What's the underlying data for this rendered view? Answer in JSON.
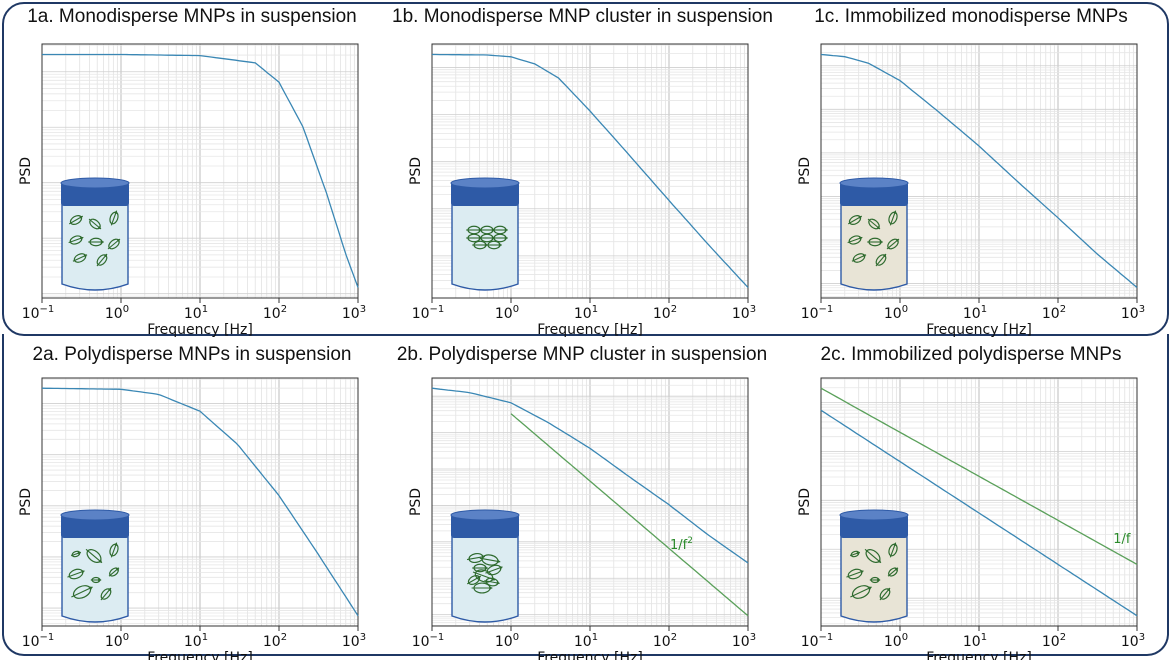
{
  "chart_data": [
    {
      "panel": "1a",
      "type": "line",
      "title": "1a. Monodisperse MNPs in suspension",
      "xlabel": "Frequency [Hz]",
      "ylabel": "PSD",
      "xscale": "log",
      "yscale": "log",
      "xlim": [
        0.1,
        1000
      ],
      "xticks": [
        0.1,
        1,
        10,
        100,
        1000
      ],
      "xtick_labels": [
        {
          "base": "10",
          "exp": "−1"
        },
        {
          "base": "10",
          "exp": "0"
        },
        {
          "base": "10",
          "exp": "1"
        },
        {
          "base": "10",
          "exp": "2"
        },
        {
          "base": "10",
          "exp": "3"
        }
      ],
      "grid": true,
      "series": [
        {
          "color": "#3a87b4",
          "x": [
            0.1,
            1,
            10,
            50,
            100,
            200,
            400,
            700,
            1000
          ],
          "y_rel": [
            0.0,
            0.0,
            -0.02,
            -0.15,
            -0.5,
            -1.3,
            -2.5,
            -3.6,
            -4.2
          ]
        }
      ],
      "illustration": "vial-monodisperse"
    },
    {
      "panel": "1b",
      "type": "line",
      "title": "1b. Monodisperse MNP cluster in suspension",
      "xlabel": "Frequency [Hz]",
      "ylabel": "PSD",
      "xscale": "log",
      "yscale": "log",
      "xlim": [
        0.1,
        1000
      ],
      "xticks": [
        0.1,
        1,
        10,
        100,
        1000
      ],
      "xtick_labels": [
        {
          "base": "10",
          "exp": "−1"
        },
        {
          "base": "10",
          "exp": "0"
        },
        {
          "base": "10",
          "exp": "1"
        },
        {
          "base": "10",
          "exp": "2"
        },
        {
          "base": "10",
          "exp": "3"
        }
      ],
      "grid": true,
      "series": [
        {
          "color": "#3a87b4",
          "x": [
            0.1,
            0.5,
            1,
            2,
            4,
            10,
            30,
            100,
            300,
            1000
          ],
          "y_rel": [
            0.0,
            -0.01,
            -0.05,
            -0.2,
            -0.5,
            -1.2,
            -2.1,
            -3.1,
            -4.0,
            -4.95
          ]
        }
      ],
      "illustration": "vial-cluster"
    },
    {
      "panel": "1c",
      "type": "line",
      "title": "1c. Immobilized monodisperse MNPs",
      "xlabel": "Frequency [Hz]",
      "ylabel": "PSD",
      "xscale": "log",
      "yscale": "log",
      "xlim": [
        0.1,
        1000
      ],
      "xticks": [
        0.1,
        1,
        10,
        100,
        1000
      ],
      "xtick_labels": [
        {
          "base": "10",
          "exp": "−1"
        },
        {
          "base": "10",
          "exp": "0"
        },
        {
          "base": "10",
          "exp": "1"
        },
        {
          "base": "10",
          "exp": "2"
        },
        {
          "base": "10",
          "exp": "3"
        }
      ],
      "grid": true,
      "series": [
        {
          "color": "#3a87b4",
          "x": [
            0.1,
            0.2,
            0.4,
            1,
            3,
            10,
            30,
            100,
            300,
            1000
          ],
          "y_rel": [
            0.0,
            -0.05,
            -0.2,
            -0.6,
            -1.3,
            -2.1,
            -2.9,
            -3.75,
            -4.55,
            -5.35
          ]
        }
      ],
      "illustration": "vial-immobilized"
    },
    {
      "panel": "2a",
      "type": "line",
      "title": "2a. Polydisperse MNPs in suspension",
      "xlabel": "Frequency [Hz]",
      "ylabel": "PSD",
      "xscale": "log",
      "yscale": "log",
      "xlim": [
        0.1,
        1000
      ],
      "xticks": [
        0.1,
        1,
        10,
        100,
        1000
      ],
      "xtick_labels": [
        {
          "base": "10",
          "exp": "−1"
        },
        {
          "base": "10",
          "exp": "0"
        },
        {
          "base": "10",
          "exp": "1"
        },
        {
          "base": "10",
          "exp": "2"
        },
        {
          "base": "10",
          "exp": "3"
        }
      ],
      "grid": true,
      "series": [
        {
          "color": "#3a87b4",
          "x": [
            0.1,
            1,
            3,
            10,
            30,
            100,
            300,
            1000
          ],
          "y_rel": [
            0.0,
            -0.02,
            -0.12,
            -0.45,
            -1.1,
            -2.1,
            -3.2,
            -4.45
          ]
        }
      ],
      "illustration": "vial-polydisperse"
    },
    {
      "panel": "2b",
      "type": "line",
      "title": "2b. Polydisperse MNP cluster in suspension",
      "xlabel": "Frequency [Hz]",
      "ylabel": "PSD",
      "xscale": "log",
      "yscale": "log",
      "xlim": [
        0.1,
        1000
      ],
      "xticks": [
        0.1,
        1,
        10,
        100,
        1000
      ],
      "xtick_labels": [
        {
          "base": "10",
          "exp": "−1"
        },
        {
          "base": "10",
          "exp": "0"
        },
        {
          "base": "10",
          "exp": "1"
        },
        {
          "base": "10",
          "exp": "2"
        },
        {
          "base": "10",
          "exp": "3"
        }
      ],
      "grid": true,
      "series": [
        {
          "color": "#3a87b4",
          "x": [
            0.1,
            0.3,
            1,
            3,
            10,
            30,
            100,
            300,
            1000
          ],
          "y_rel": [
            0.0,
            -0.12,
            -0.4,
            -0.95,
            -1.65,
            -2.4,
            -3.2,
            -4.0,
            -4.8
          ]
        },
        {
          "color": "#5aa05a",
          "x": [
            1,
            10,
            100,
            1000
          ],
          "y_rel": [
            -0.7,
            -2.55,
            -4.4,
            -6.25
          ]
        }
      ],
      "annotation": {
        "text": "1/f",
        "sup": "2"
      },
      "illustration": "vial-poly-cluster"
    },
    {
      "panel": "2c",
      "type": "line",
      "title": "2c. Immobilized polydisperse MNPs",
      "xlabel": "Frequency [Hz]",
      "ylabel": "PSD",
      "xscale": "log",
      "yscale": "log",
      "xlim": [
        0.1,
        1000
      ],
      "xticks": [
        0.1,
        1,
        10,
        100,
        1000
      ],
      "xtick_labels": [
        {
          "base": "10",
          "exp": "−1"
        },
        {
          "base": "10",
          "exp": "0"
        },
        {
          "base": "10",
          "exp": "1"
        },
        {
          "base": "10",
          "exp": "2"
        },
        {
          "base": "10",
          "exp": "3"
        }
      ],
      "grid": true,
      "series": [
        {
          "color": "#3a87b4",
          "x": [
            0.1,
            1000
          ],
          "y_rel": [
            -0.45,
            -4.65
          ]
        },
        {
          "color": "#5aa05a",
          "x": [
            0.1,
            1000
          ],
          "y_rel": [
            0.0,
            -3.6
          ]
        }
      ],
      "annotation": {
        "text": "1/f",
        "sup": ""
      },
      "illustration": "vial-poly-immobilized"
    }
  ],
  "colors": {
    "frame": "#1f3864",
    "curve": "#3a87b4",
    "reference": "#5aa05a",
    "vial_cap": "#2e5aa6",
    "vial_liquid": "#dcecf2",
    "vial_gel": "#e8e4d6",
    "particle": "#2f6b2f"
  }
}
